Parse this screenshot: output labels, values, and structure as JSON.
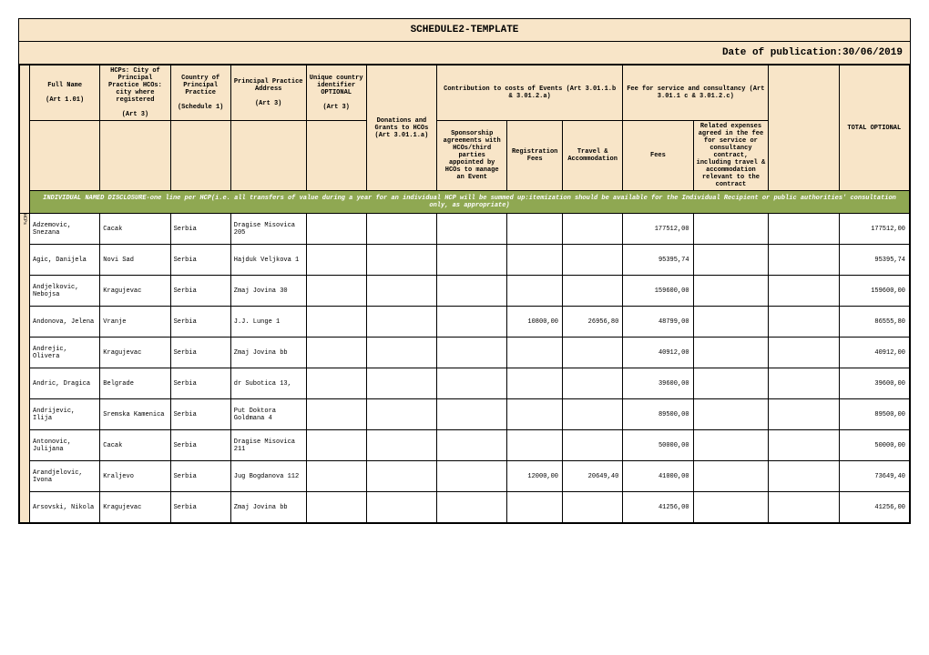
{
  "title": "SCHEDULE2-TEMPLATE",
  "date_label": "Date of publication:30/06/2019",
  "headers": {
    "full_name": "Full Name",
    "full_name_sub": "(Art 1.01)",
    "city": "HCPs: City of Principal Practice HCOs: city where registered",
    "city_sub": "(Art 3)",
    "country": "Country of Principal Practice",
    "country_sub": "(Schedule 1)",
    "address": "Principal Practice Address",
    "address_sub": "(Art 3)",
    "uid": "Unique country identifier OPTIONAL",
    "uid_sub": "(Art 3)",
    "donations": "Donations and Grants to HCOs (Art 3.01.1.a)",
    "contrib": "Contribution to costs of Events (Art 3.01.1.b & 3.01.2.a)",
    "fee": "Fee for service and consultancy (Art 3.01.1 c & 3.01.2.c)",
    "total": "TOTAL OPTIONAL",
    "sponsorship": "Sponsorship agreements with HCOs/third parties appointed by HCOs to manage an Event",
    "reg_fees": "Registration Fees",
    "travel": "Travel & Accommodation",
    "fees": "Fees",
    "rel_exp": "Related expenses agreed in the fee for service or consultancy contract, including travel & accommodation relevant to the contract"
  },
  "side_label": "HCPs",
  "banner": "INDIVIDUAL NAMED DISCLOSURE-one line per HCP(i.e. all transfers of value during a year for an individual HCP will be summed up:itemization should be available for the Individual Recipient or public authorities' consultation only, as appropriate)",
  "rows": [
    {
      "name": "Adzemovic, Snezana",
      "city": "Cacak",
      "country": "Serbia",
      "address": "Dragise Misovica 205",
      "uid": "",
      "don": "",
      "spon": "",
      "reg": "",
      "trav": "",
      "fee": "177512,00",
      "rel": "",
      "tot": "177512,00"
    },
    {
      "name": "Agic, Danijela",
      "city": "Novi Sad",
      "country": "Serbia",
      "address": "Hajduk Veljkova 1",
      "uid": "",
      "don": "",
      "spon": "",
      "reg": "",
      "trav": "",
      "fee": "95395,74",
      "rel": "",
      "tot": "95395,74"
    },
    {
      "name": "Andjelkovic, Nebojsa",
      "city": "Kragujevac",
      "country": "Serbia",
      "address": "Zmaj Jovina 30",
      "uid": "",
      "don": "",
      "spon": "",
      "reg": "",
      "trav": "",
      "fee": "159600,00",
      "rel": "",
      "tot": "159600,00"
    },
    {
      "name": "Andonova, Jelena",
      "city": "Vranje",
      "country": "Serbia",
      "address": "J.J. Lunge 1",
      "uid": "",
      "don": "",
      "spon": "",
      "reg": "10800,00",
      "trav": "26956,80",
      "fee": "48799,00",
      "rel": "",
      "tot": "86555,80"
    },
    {
      "name": "Andrejic, Olivera",
      "city": "Kragujevac",
      "country": "Serbia",
      "address": "Zmaj Jovina bb",
      "uid": "",
      "don": "",
      "spon": "",
      "reg": "",
      "trav": "",
      "fee": "40912,00",
      "rel": "",
      "tot": "40912,00"
    },
    {
      "name": "Andric, Dragica",
      "city": "Belgrade",
      "country": "Serbia",
      "address": "dr Subotica 13,",
      "uid": "",
      "don": "",
      "spon": "",
      "reg": "",
      "trav": "",
      "fee": "39600,00",
      "rel": "",
      "tot": "39600,00"
    },
    {
      "name": "Andrijevic, Ilija",
      "city": "Sremska Kamenica",
      "country": "Serbia",
      "address": "Put Doktora Goldmana 4",
      "uid": "",
      "don": "",
      "spon": "",
      "reg": "",
      "trav": "",
      "fee": "89500,00",
      "rel": "",
      "tot": "89500,00"
    },
    {
      "name": "Antonovic, Julijana",
      "city": "Cacak",
      "country": "Serbia",
      "address": "Dragise Misovica 211",
      "uid": "",
      "don": "",
      "spon": "",
      "reg": "",
      "trav": "",
      "fee": "50000,00",
      "rel": "",
      "tot": "50000,00"
    },
    {
      "name": "Arandjelovic, Ivona",
      "city": "Kraljevo",
      "country": "Serbia",
      "address": "Jug Bogdanova 112",
      "uid": "",
      "don": "",
      "spon": "",
      "reg": "12000,00",
      "trav": "20649,40",
      "fee": "41000,00",
      "rel": "",
      "tot": "73649,40"
    },
    {
      "name": "Arsovski, Nikola",
      "city": "Kragujevac",
      "country": "Serbia",
      "address": "Zmaj Jovina bb",
      "uid": "",
      "don": "",
      "spon": "",
      "reg": "",
      "trav": "",
      "fee": "41256,00",
      "rel": "",
      "tot": "41256,00"
    }
  ],
  "colors": {
    "peach": "#f8e5c8",
    "green": "#8fa852",
    "border": "#000000"
  }
}
